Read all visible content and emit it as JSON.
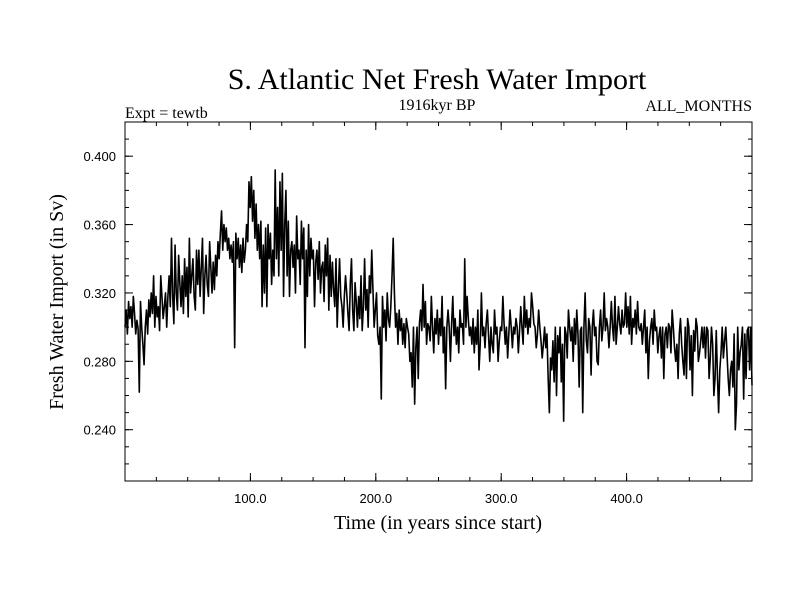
{
  "chart_data": {
    "type": "line",
    "title": "S. Atlantic Net Fresh Water Import",
    "subtitle_left": "Expt = tewtb",
    "subtitle_center": "1916kyr BP",
    "subtitle_right": "ALL_MONTHS",
    "xlabel": "Time (in years since start)",
    "ylabel": "Fresh Water Import (in Sv)",
    "xlim": [
      0,
      500
    ],
    "ylim": [
      0.21,
      0.42
    ],
    "x_ticks": [
      100,
      200,
      300,
      400
    ],
    "x_tick_labels": [
      "100.0",
      "200.0",
      "300.0",
      "400.0"
    ],
    "y_ticks": [
      0.24,
      0.28,
      0.32,
      0.36,
      0.4
    ],
    "y_tick_labels": [
      "0.240",
      "0.280",
      "0.320",
      "0.360",
      "0.400"
    ],
    "grid": false,
    "series": [
      {
        "name": "Fresh Water Import",
        "x_start": 0,
        "x_end": 500,
        "values": [
          0.3,
          0.31,
          0.296,
          0.315,
          0.305,
          0.312,
          0.3,
          0.318,
          0.308,
          0.296,
          0.304,
          0.299,
          0.262,
          0.315,
          0.3,
          0.29,
          0.278,
          0.3,
          0.31,
          0.296,
          0.316,
          0.306,
          0.32,
          0.308,
          0.33,
          0.3,
          0.318,
          0.306,
          0.312,
          0.298,
          0.33,
          0.318,
          0.305,
          0.312,
          0.32,
          0.3,
          0.318,
          0.33,
          0.312,
          0.352,
          0.318,
          0.302,
          0.348,
          0.32,
          0.31,
          0.342,
          0.326,
          0.312,
          0.33,
          0.308,
          0.34,
          0.318,
          0.335,
          0.306,
          0.352,
          0.32,
          0.33,
          0.34,
          0.318,
          0.31,
          0.345,
          0.325,
          0.345,
          0.318,
          0.335,
          0.352,
          0.308,
          0.33,
          0.342,
          0.325,
          0.318,
          0.35,
          0.335,
          0.32,
          0.338,
          0.322,
          0.342,
          0.33,
          0.35,
          0.34,
          0.355,
          0.368,
          0.345,
          0.36,
          0.35,
          0.358,
          0.345,
          0.352,
          0.34,
          0.348,
          0.338,
          0.35,
          0.288,
          0.355,
          0.34,
          0.352,
          0.335,
          0.348,
          0.332,
          0.352,
          0.338,
          0.345,
          0.36,
          0.35,
          0.385,
          0.37,
          0.388,
          0.362,
          0.38,
          0.352,
          0.372,
          0.345,
          0.36,
          0.34,
          0.362,
          0.312,
          0.348,
          0.32,
          0.358,
          0.312,
          0.36,
          0.34,
          0.355,
          0.325,
          0.345,
          0.33,
          0.392,
          0.34,
          0.37,
          0.33,
          0.385,
          0.345,
          0.39,
          0.318,
          0.36,
          0.38,
          0.33,
          0.362,
          0.318,
          0.345,
          0.35,
          0.335,
          0.348,
          0.32,
          0.365,
          0.34,
          0.345,
          0.325,
          0.362,
          0.34,
          0.358,
          0.288,
          0.345,
          0.318,
          0.36,
          0.33,
          0.352,
          0.34,
          0.345,
          0.312,
          0.338,
          0.345,
          0.328,
          0.35,
          0.32,
          0.335,
          0.338,
          0.315,
          0.348,
          0.33,
          0.352,
          0.31,
          0.342,
          0.318,
          0.338,
          0.322,
          0.312,
          0.34,
          0.3,
          0.322,
          0.34,
          0.318,
          0.312,
          0.3,
          0.318,
          0.33,
          0.32,
          0.308,
          0.298,
          0.325,
          0.34,
          0.31,
          0.298,
          0.326,
          0.315,
          0.3,
          0.318,
          0.305,
          0.33,
          0.298,
          0.312,
          0.34,
          0.31,
          0.322,
          0.3,
          0.33,
          0.32,
          0.345,
          0.322,
          0.3,
          0.31,
          0.32,
          0.295,
          0.29,
          0.3,
          0.258,
          0.318,
          0.3,
          0.31,
          0.292,
          0.32,
          0.305,
          0.3,
          0.312,
          0.33,
          0.352,
          0.32,
          0.3,
          0.308,
          0.29,
          0.31,
          0.298,
          0.305,
          0.29,
          0.302,
          0.288,
          0.305,
          0.3,
          0.296,
          0.28,
          0.285,
          0.265,
          0.3,
          0.255,
          0.288,
          0.3,
          0.27,
          0.302,
          0.31,
          0.298,
          0.325,
          0.3,
          0.315,
          0.29,
          0.302,
          0.3,
          0.292,
          0.318,
          0.3,
          0.285,
          0.305,
          0.296,
          0.31,
          0.29,
          0.305,
          0.295,
          0.318,
          0.285,
          0.3,
          0.264,
          0.3,
          0.31,
          0.3,
          0.28,
          0.302,
          0.318,
          0.295,
          0.305,
          0.29,
          0.3,
          0.285,
          0.31,
          0.3,
          0.302,
          0.29,
          0.34,
          0.3,
          0.318,
          0.305,
          0.295,
          0.3,
          0.29,
          0.305,
          0.285,
          0.3,
          0.29,
          0.31,
          0.275,
          0.29,
          0.32,
          0.295,
          0.3,
          0.288,
          0.302,
          0.31,
          0.295,
          0.28,
          0.3,
          0.29,
          0.285,
          0.31,
          0.296,
          0.3,
          0.28,
          0.292,
          0.3,
          0.298,
          0.318,
          0.302,
          0.29,
          0.3,
          0.282,
          0.296,
          0.31,
          0.3,
          0.288,
          0.3,
          0.296,
          0.305,
          0.3,
          0.285,
          0.298,
          0.312,
          0.3,
          0.29,
          0.318,
          0.3,
          0.31,
          0.296,
          0.305,
          0.3,
          0.32,
          0.312,
          0.302,
          0.3,
          0.288,
          0.296,
          0.31,
          0.3,
          0.292,
          0.282,
          0.29,
          0.3,
          0.288,
          0.296,
          0.27,
          0.25,
          0.282,
          0.275,
          0.292,
          0.268,
          0.3,
          0.26,
          0.295,
          0.285,
          0.3,
          0.268,
          0.29,
          0.245,
          0.3,
          0.296,
          0.282,
          0.31,
          0.3,
          0.292,
          0.3,
          0.28,
          0.305,
          0.29,
          0.31,
          0.296,
          0.265,
          0.298,
          0.3,
          0.25,
          0.3,
          0.32,
          0.292,
          0.285,
          0.305,
          0.3,
          0.272,
          0.3,
          0.31,
          0.295,
          0.3,
          0.28,
          0.278,
          0.3,
          0.31,
          0.292,
          0.3,
          0.32,
          0.298,
          0.305,
          0.3,
          0.288,
          0.3,
          0.315,
          0.3,
          0.292,
          0.318,
          0.29,
          0.3,
          0.312,
          0.302,
          0.296,
          0.31,
          0.3,
          0.302,
          0.32,
          0.3,
          0.312,
          0.296,
          0.318,
          0.29,
          0.305,
          0.3,
          0.31,
          0.296,
          0.315,
          0.3,
          0.298,
          0.302,
          0.29,
          0.3,
          0.31,
          0.285,
          0.3,
          0.27,
          0.292,
          0.3,
          0.305,
          0.29,
          0.31,
          0.298,
          0.3,
          0.285,
          0.295,
          0.3,
          0.282,
          0.3,
          0.27,
          0.296,
          0.3,
          0.288,
          0.302,
          0.3,
          0.285,
          0.31,
          0.3,
          0.288,
          0.28,
          0.29,
          0.27,
          0.296,
          0.305,
          0.29,
          0.28,
          0.272,
          0.3,
          0.27,
          0.305,
          0.3,
          0.275,
          0.295,
          0.26,
          0.298,
          0.286,
          0.305,
          0.3,
          0.28,
          0.285,
          0.292,
          0.3,
          0.288,
          0.3,
          0.282,
          0.3,
          0.298,
          0.27,
          0.282,
          0.3,
          0.29,
          0.26,
          0.27,
          0.298,
          0.272,
          0.25,
          0.275,
          0.285,
          0.3,
          0.282,
          0.292,
          0.3,
          0.285,
          0.27,
          0.26,
          0.275,
          0.28,
          0.265,
          0.296,
          0.24,
          0.255,
          0.3,
          0.275,
          0.285,
          0.29,
          0.3,
          0.258,
          0.296,
          0.27,
          0.298,
          0.3,
          0.275,
          0.3,
          0.266
        ]
      }
    ]
  }
}
